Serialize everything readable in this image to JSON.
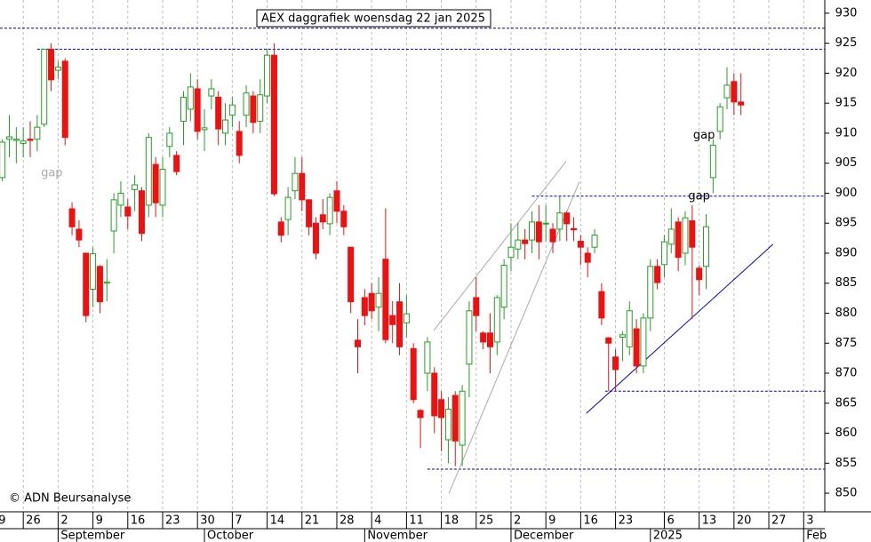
{
  "chart_data": {
    "type": "candlestick",
    "title": "AEX daggrafiek woensdag 22 jan 2025",
    "copyright": "© ADN Beursanalyse",
    "up_color": "#22a022",
    "down_color": "#ee1111",
    "xlim": [
      1.66,
      120.03
    ],
    "ylim": [
      846.9,
      932.2
    ],
    "yticks": [
      850,
      855,
      860,
      865,
      870,
      875,
      880,
      885,
      890,
      895,
      900,
      905,
      910,
      915,
      920,
      925,
      930
    ],
    "xticks": [
      {
        "value": 0,
        "label": "19"
      },
      {
        "value": 5,
        "label": "26"
      },
      {
        "value": 10,
        "label": "2"
      },
      {
        "value": 15,
        "label": "9"
      },
      {
        "value": 20,
        "label": "16"
      },
      {
        "value": 25,
        "label": "23"
      },
      {
        "value": 30,
        "label": "30"
      },
      {
        "value": 35,
        "label": "7"
      },
      {
        "value": 40,
        "label": "14"
      },
      {
        "value": 45,
        "label": "21"
      },
      {
        "value": 50,
        "label": "28"
      },
      {
        "value": 55,
        "label": "4"
      },
      {
        "value": 60,
        "label": "11"
      },
      {
        "value": 65,
        "label": "18"
      },
      {
        "value": 70,
        "label": "25"
      },
      {
        "value": 75,
        "label": "2"
      },
      {
        "value": 80,
        "label": "9"
      },
      {
        "value": 85,
        "label": "16"
      },
      {
        "value": 90,
        "label": "23"
      },
      {
        "value": 97,
        "label": "6"
      },
      {
        "value": 102,
        "label": "13"
      },
      {
        "value": 107,
        "label": "20"
      },
      {
        "value": 112,
        "label": "27"
      },
      {
        "value": 117,
        "label": "3"
      }
    ],
    "months": [
      {
        "value": 10,
        "label": "September"
      },
      {
        "value": 31,
        "label": "October"
      },
      {
        "value": 54,
        "label": "November"
      },
      {
        "value": 75,
        "label": "December"
      },
      {
        "value": 95,
        "label": "2025"
      },
      {
        "value": 117,
        "label": "Feb"
      }
    ],
    "x": [
      2,
      3,
      4,
      5,
      6,
      7,
      8,
      9,
      10,
      11,
      12,
      13,
      14,
      15,
      16,
      17,
      18,
      19,
      20,
      21,
      22,
      23,
      24,
      25,
      26,
      27,
      28,
      29,
      30,
      31,
      32,
      33,
      34,
      35,
      36,
      37,
      38,
      39,
      40,
      41,
      42,
      43,
      44,
      45,
      46,
      47,
      48,
      49,
      50,
      51,
      52,
      53,
      54,
      55,
      56,
      57,
      58,
      59,
      60,
      61,
      62,
      63,
      64,
      65,
      66,
      67,
      68,
      69,
      70,
      71,
      72,
      73,
      74,
      75,
      76,
      77,
      78,
      79,
      80,
      81,
      82,
      83,
      84,
      85,
      86,
      87,
      88,
      89,
      90,
      91,
      92,
      93,
      94,
      95,
      96,
      97,
      98,
      99,
      100,
      101,
      102,
      103,
      104,
      105,
      106,
      107,
      108
    ],
    "open": [
      902.6,
      909,
      908.8,
      908.3,
      909,
      909,
      911.5,
      924,
      920.5,
      922,
      897.4,
      894,
      890,
      884,
      887.8,
      885,
      893.7,
      898,
      897.7,
      900.6,
      900.4,
      898,
      904.8,
      898,
      907.8,
      906.3,
      912,
      914,
      917.4,
      910.6,
      916.2,
      916,
      910,
      913,
      910.3,
      913,
      916.2,
      912,
      916.2,
      923,
      895.2,
      895.6,
      900.4,
      903.3,
      898.9,
      895,
      896.4,
      894.9,
      900.4,
      897,
      891,
      875.5,
      882.6,
      883.3,
      881,
      889,
      879.6,
      881.9,
      878.4,
      874.1,
      863.8,
      870,
      870,
      865.6,
      858.9,
      866.3,
      858,
      871.5,
      882.6,
      876.7,
      876.7,
      875.2,
      881,
      889.3,
      890.7,
      892.2,
      892.2,
      895.2,
      894.9,
      894,
      894,
      896.7,
      894.1,
      892,
      890,
      891,
      883.6,
      875.9,
      872.7,
      876,
      874.4,
      877.4,
      871.2,
      879.2,
      887.8,
      888.1,
      891.5,
      895.2,
      890,
      895.4,
      887.5,
      887.8,
      902.6,
      910.3,
      915.9,
      918.6,
      915.2
    ],
    "high": [
      909,
      913,
      911,
      911,
      912,
      913,
      924,
      925,
      922,
      922.5,
      898.5,
      895.5,
      890,
      891,
      888,
      889,
      900,
      902,
      899,
      903,
      901,
      910,
      906,
      906,
      911,
      907,
      917,
      920,
      919,
      914,
      919,
      917,
      915,
      916,
      912,
      918,
      917,
      919,
      924,
      925,
      896,
      901,
      906,
      906,
      899,
      896,
      899,
      900,
      902,
      898,
      891,
      879,
      884,
      885,
      886,
      897.5,
      882,
      885,
      883,
      875,
      864,
      876,
      871,
      867,
      866,
      867,
      868,
      882,
      886,
      877,
      880,
      883,
      889,
      895,
      895,
      894,
      897,
      898,
      898,
      895,
      899.5,
      897,
      896,
      893,
      891,
      894,
      885,
      876,
      874,
      877,
      882,
      879,
      880,
      889,
      889,
      893,
      897.5,
      896,
      897,
      898,
      888,
      896.5,
      909,
      915,
      921,
      920,
      920
    ],
    "low": [
      902,
      906,
      905,
      906,
      906,
      907,
      911,
      917,
      919,
      908,
      893,
      891,
      878.5,
      881,
      880,
      882,
      890,
      896,
      894,
      897,
      892,
      896,
      896,
      896,
      906,
      903,
      908,
      912,
      909,
      907,
      914,
      908,
      908,
      911,
      905,
      911,
      910,
      910,
      915,
      899.5,
      891.8,
      893,
      899,
      897,
      893,
      889,
      894,
      893,
      895,
      893,
      880,
      870,
      878,
      879,
      877,
      875,
      875,
      873,
      876,
      865,
      857.5,
      867,
      860,
      857,
      855,
      854.5,
      854.5,
      866,
      877,
      874,
      870,
      873,
      879,
      887,
      889,
      889,
      890,
      889,
      892,
      890,
      892,
      892,
      892,
      888,
      886,
      890,
      878,
      867,
      867,
      872,
      873,
      870,
      870,
      877,
      884,
      886,
      890,
      887,
      888,
      879,
      883,
      884,
      900,
      909,
      914,
      913,
      913
    ],
    "close": [
      908.5,
      909.4,
      909,
      908.7,
      908.8,
      911,
      924,
      918.9,
      921,
      909.3,
      894.4,
      892.2,
      879.6,
      889.9,
      881.9,
      885.2,
      898.9,
      900,
      896.2,
      901.4,
      893.3,
      909.3,
      898.4,
      904,
      910,
      903.6,
      916,
      917.7,
      910.3,
      910.9,
      917.4,
      910.7,
      912.2,
      914.7,
      906.3,
      916.7,
      911.8,
      916.4,
      923,
      899.9,
      893,
      899.3,
      903.3,
      898.9,
      894.4,
      890,
      895.2,
      899.3,
      897,
      894.4,
      881.9,
      874.4,
      879.6,
      880.4,
      883.3,
      875.6,
      878.1,
      874.4,
      879.9,
      865.6,
      862.6,
      875.2,
      862.9,
      862.6,
      864,
      858.7,
      867,
      880.4,
      879.6,
      875.2,
      874.4,
      882.6,
      888,
      891,
      892.2,
      891.6,
      895.2,
      891.9,
      895,
      891.9,
      896.7,
      894.9,
      893.9,
      891,
      888.5,
      893,
      879.2,
      875,
      870.6,
      876.4,
      880.4,
      871.2,
      879.2,
      887.8,
      885.1,
      891.9,
      894,
      889.3,
      895.9,
      891,
      885.6,
      894.4,
      908,
      914.4,
      918,
      915.2,
      914.7
    ],
    "levels": [
      {
        "value": 927.5,
        "start": 1.66
      },
      {
        "value": 924,
        "start": 7
      },
      {
        "value": 899.5,
        "start": 78
      },
      {
        "value": 867,
        "start": 88.5
      },
      {
        "value": 854,
        "start": 63
      }
    ],
    "trendlines": [
      {
        "color": "#0000cc",
        "points": [
          [
            85.8,
            863.3
          ],
          [
            112.6,
            891.5
          ]
        ]
      },
      {
        "color": "#aaaaaa",
        "points": [
          [
            63.9,
            877.1
          ],
          [
            82.9,
            905.3
          ]
        ]
      },
      {
        "color": "#aaaaaa",
        "points": [
          [
            66.1,
            850
          ],
          [
            84.8,
            901.9
          ]
        ]
      }
    ],
    "annotations": [
      {
        "text": "gap",
        "x": 9.1,
        "y": 903.3,
        "color": "#aaaaaa"
      },
      {
        "text": "gap",
        "x": 102.7,
        "y": 909.6,
        "color": "#000000"
      },
      {
        "text": "gap",
        "x": 102,
        "y": 899.5,
        "color": "#000000"
      }
    ]
  }
}
